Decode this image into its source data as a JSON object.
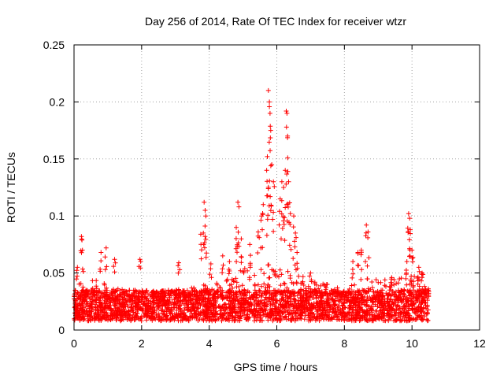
{
  "chart_data": {
    "type": "scatter",
    "title": "Day 256 of 2014, Rate Of TEC Index for receiver wtzr",
    "xlabel": "GPS time / hours",
    "ylabel": "ROTI / TECUs",
    "xlim": [
      0,
      12
    ],
    "ylim": [
      0,
      0.25
    ],
    "x_ticks": [
      0,
      2,
      4,
      6,
      8,
      10,
      12
    ],
    "x_tick_labels": [
      "0",
      "2",
      "4",
      "6",
      "8",
      "10",
      "12"
    ],
    "y_ticks": [
      0,
      0.05,
      0.1,
      0.15,
      0.2,
      0.25
    ],
    "y_tick_labels": [
      "0",
      "0.05",
      "0.1",
      "0.15",
      "0.2",
      "0.25"
    ],
    "grid": true,
    "marker": "+",
    "series": [
      {
        "name": "ROTI",
        "color": "#ff0000",
        "x_range": [
          0.0,
          10.5
        ],
        "baseline": {
          "low": 0.008,
          "high": 0.035
        },
        "envelope": [
          [
            0.0,
            0.04
          ],
          [
            0.5,
            0.045
          ],
          [
            1.0,
            0.04
          ],
          [
            1.5,
            0.035
          ],
          [
            2.0,
            0.03
          ],
          [
            2.5,
            0.03
          ],
          [
            3.0,
            0.035
          ],
          [
            3.5,
            0.04
          ],
          [
            4.0,
            0.04
          ],
          [
            4.5,
            0.045
          ],
          [
            5.0,
            0.055
          ],
          [
            5.5,
            0.06
          ],
          [
            6.0,
            0.055
          ],
          [
            6.5,
            0.05
          ],
          [
            7.0,
            0.045
          ],
          [
            7.5,
            0.04
          ],
          [
            8.0,
            0.035
          ],
          [
            8.5,
            0.045
          ],
          [
            9.0,
            0.045
          ],
          [
            9.5,
            0.045
          ],
          [
            10.0,
            0.05
          ],
          [
            10.5,
            0.04
          ]
        ],
        "peaks": [
          {
            "x": 0.1,
            "y": 0.055
          },
          {
            "x": 0.22,
            "y": 0.082
          },
          {
            "x": 0.25,
            "y": 0.07
          },
          {
            "x": 0.8,
            "y": 0.068
          },
          {
            "x": 0.95,
            "y": 0.072
          },
          {
            "x": 1.2,
            "y": 0.062
          },
          {
            "x": 1.95,
            "y": 0.062
          },
          {
            "x": 3.1,
            "y": 0.059
          },
          {
            "x": 3.75,
            "y": 0.084
          },
          {
            "x": 3.85,
            "y": 0.112
          },
          {
            "x": 3.88,
            "y": 0.105
          },
          {
            "x": 3.9,
            "y": 0.1
          },
          {
            "x": 4.05,
            "y": 0.058
          },
          {
            "x": 4.4,
            "y": 0.065
          },
          {
            "x": 4.6,
            "y": 0.06
          },
          {
            "x": 4.85,
            "y": 0.112
          },
          {
            "x": 4.88,
            "y": 0.108
          },
          {
            "x": 4.8,
            "y": 0.09
          },
          {
            "x": 4.95,
            "y": 0.08
          },
          {
            "x": 5.2,
            "y": 0.075
          },
          {
            "x": 5.45,
            "y": 0.086
          },
          {
            "x": 5.55,
            "y": 0.1
          },
          {
            "x": 5.6,
            "y": 0.11
          },
          {
            "x": 5.7,
            "y": 0.14
          },
          {
            "x": 5.72,
            "y": 0.152
          },
          {
            "x": 5.75,
            "y": 0.21
          },
          {
            "x": 5.78,
            "y": 0.2
          },
          {
            "x": 5.8,
            "y": 0.19
          },
          {
            "x": 5.82,
            "y": 0.175
          },
          {
            "x": 5.85,
            "y": 0.145
          },
          {
            "x": 5.9,
            "y": 0.13
          },
          {
            "x": 6.1,
            "y": 0.115
          },
          {
            "x": 6.15,
            "y": 0.13
          },
          {
            "x": 6.2,
            "y": 0.125
          },
          {
            "x": 6.25,
            "y": 0.14
          },
          {
            "x": 6.28,
            "y": 0.192
          },
          {
            "x": 6.3,
            "y": 0.19
          },
          {
            "x": 6.32,
            "y": 0.17
          },
          {
            "x": 6.35,
            "y": 0.13
          },
          {
            "x": 6.4,
            "y": 0.102
          },
          {
            "x": 6.5,
            "y": 0.1
          },
          {
            "x": 6.55,
            "y": 0.085
          },
          {
            "x": 6.6,
            "y": 0.068
          },
          {
            "x": 7.0,
            "y": 0.05
          },
          {
            "x": 8.25,
            "y": 0.06
          },
          {
            "x": 8.4,
            "y": 0.068
          },
          {
            "x": 8.5,
            "y": 0.07
          },
          {
            "x": 8.65,
            "y": 0.092
          },
          {
            "x": 8.7,
            "y": 0.086
          },
          {
            "x": 9.4,
            "y": 0.046
          },
          {
            "x": 9.85,
            "y": 0.06
          },
          {
            "x": 9.9,
            "y": 0.102
          },
          {
            "x": 9.93,
            "y": 0.098
          },
          {
            "x": 9.95,
            "y": 0.088
          },
          {
            "x": 10.0,
            "y": 0.07
          },
          {
            "x": 10.2,
            "y": 0.055
          },
          {
            "x": 10.3,
            "y": 0.05
          }
        ]
      }
    ]
  }
}
